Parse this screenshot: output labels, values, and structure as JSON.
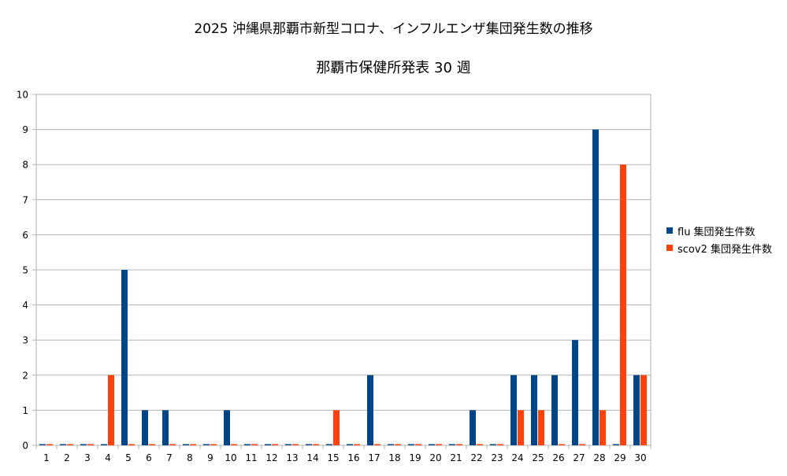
{
  "chart_data": {
    "type": "bar",
    "title": "2025 沖縄県那覇市新型コロナ、インフルエンザ集団発生数の推移",
    "subtitle": "那覇市保健所発表 30 週",
    "xlabel": "",
    "ylabel": "",
    "ylim": [
      0,
      10
    ],
    "yticks": [
      0,
      1,
      2,
      3,
      4,
      5,
      6,
      7,
      8,
      9,
      10
    ],
    "grid": true,
    "legend_position": "right",
    "categories": [
      "1",
      "2",
      "3",
      "4",
      "5",
      "6",
      "7",
      "8",
      "9",
      "10",
      "11",
      "12",
      "13",
      "14",
      "15",
      "16",
      "17",
      "18",
      "19",
      "20",
      "21",
      "22",
      "23",
      "24",
      "25",
      "26",
      "27",
      "28",
      "29",
      "30"
    ],
    "series": [
      {
        "name": "flu 集団発生件数",
        "color": "#004586",
        "values": [
          0,
          0,
          0,
          0,
          5,
          1,
          1,
          0,
          0,
          1,
          0,
          0,
          0,
          0,
          0,
          0,
          2,
          0,
          0,
          0,
          0,
          1,
          0,
          2,
          2,
          2,
          3,
          9,
          0,
          2
        ]
      },
      {
        "name": "scov2 集団発生件数",
        "color": "#ff420e",
        "values": [
          0,
          0,
          0,
          2,
          0,
          0,
          0,
          0,
          0,
          0,
          0,
          0,
          0,
          0,
          1,
          0,
          0,
          0,
          0,
          0,
          0,
          0,
          0,
          1,
          1,
          0,
          0,
          1,
          8,
          2
        ]
      }
    ]
  }
}
